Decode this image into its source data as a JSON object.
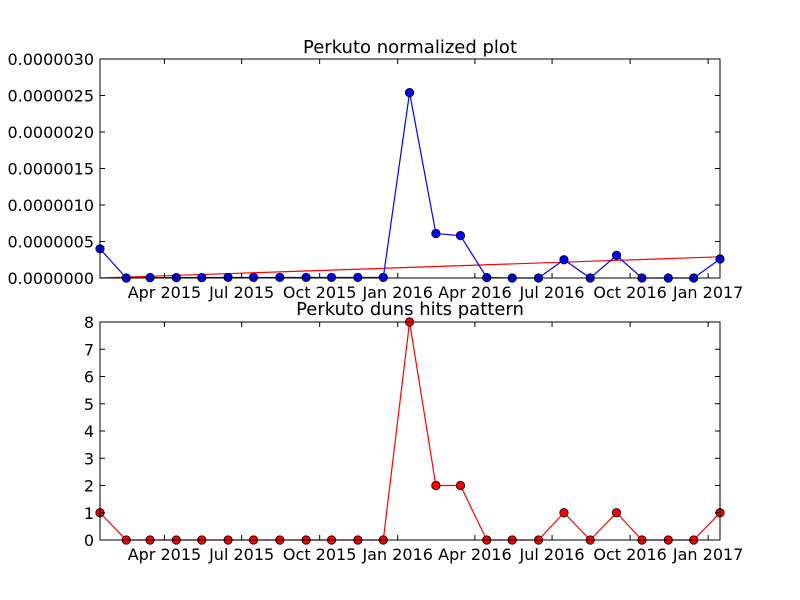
{
  "chart_data": [
    {
      "type": "line",
      "title": "Perkuto normalized plot",
      "xlabel": "",
      "ylabel": "",
      "x": [
        "2015-01-15",
        "2015-02-15",
        "2015-03-15",
        "2015-04-15",
        "2015-05-15",
        "2015-06-15",
        "2015-07-15",
        "2015-08-15",
        "2015-09-15",
        "2015-10-15",
        "2015-11-15",
        "2015-12-15",
        "2016-01-15",
        "2016-02-15",
        "2016-03-15",
        "2016-04-15",
        "2016-05-15",
        "2016-06-15",
        "2016-07-15",
        "2016-08-15",
        "2016-09-15",
        "2016-10-15",
        "2016-11-15",
        "2016-12-15",
        "2017-01-15"
      ],
      "xlim": [
        "2015-01-15",
        "2017-01-15"
      ],
      "ylim": [
        0,
        3e-06
      ],
      "yticks": [
        "0.0000000",
        "0.0000005",
        "0.0000010",
        "0.0000015",
        "0.0000020",
        "0.0000025",
        "0.0000030"
      ],
      "xticks": [
        {
          "date": "2015-04-01",
          "label": "Apr 2015"
        },
        {
          "date": "2015-07-01",
          "label": "Jul 2015"
        },
        {
          "date": "2015-10-01",
          "label": "Oct 2015"
        },
        {
          "date": "2016-01-01",
          "label": "Jan 2016"
        },
        {
          "date": "2016-04-01",
          "label": "Apr 2016"
        },
        {
          "date": "2016-07-01",
          "label": "Jul 2016"
        },
        {
          "date": "2016-10-01",
          "label": "Oct 2016"
        },
        {
          "date": "2017-01-01",
          "label": "Jan 2017"
        }
      ],
      "series": [
        {
          "color": "#0000ff",
          "marker_color": "#0000ff",
          "values": [
            4e-07,
            0,
            5e-09,
            5e-09,
            5e-09,
            8e-09,
            8e-09,
            8e-09,
            8e-09,
            8e-09,
            8e-09,
            8e-09,
            2.54e-06,
            6.1e-07,
            5.8e-07,
            5e-09,
            0,
            0,
            2.5e-07,
            0,
            3.1e-07,
            0,
            0,
            0,
            2.6e-07
          ]
        }
      ],
      "trendline": {
        "color": "#ff0000",
        "start": 0.0,
        "end": 2.9e-07
      }
    },
    {
      "type": "line",
      "title": "Perkuto duns hits pattern",
      "xlabel": "",
      "ylabel": "",
      "x": [
        "2015-01-15",
        "2015-02-15",
        "2015-03-15",
        "2015-04-15",
        "2015-05-15",
        "2015-06-15",
        "2015-07-15",
        "2015-08-15",
        "2015-09-15",
        "2015-10-15",
        "2015-11-15",
        "2015-12-15",
        "2016-01-15",
        "2016-02-15",
        "2016-03-15",
        "2016-04-15",
        "2016-05-15",
        "2016-06-15",
        "2016-07-15",
        "2016-08-15",
        "2016-09-15",
        "2016-10-15",
        "2016-11-15",
        "2016-12-15",
        "2017-01-15"
      ],
      "xlim": [
        "2015-01-15",
        "2017-01-15"
      ],
      "ylim": [
        0,
        8
      ],
      "yticks": [
        "0",
        "1",
        "2",
        "3",
        "4",
        "5",
        "6",
        "7",
        "8"
      ],
      "xticks": [
        {
          "date": "2015-04-01",
          "label": "Apr 2015"
        },
        {
          "date": "2015-07-01",
          "label": "Jul 2015"
        },
        {
          "date": "2015-10-01",
          "label": "Oct 2015"
        },
        {
          "date": "2016-01-01",
          "label": "Jan 2016"
        },
        {
          "date": "2016-04-01",
          "label": "Apr 2016"
        },
        {
          "date": "2016-07-01",
          "label": "Jul 2016"
        },
        {
          "date": "2016-10-01",
          "label": "Oct 2016"
        },
        {
          "date": "2017-01-01",
          "label": "Jan 2017"
        }
      ],
      "series": [
        {
          "color": "#ff0000",
          "marker_color": "#ff0000",
          "values": [
            1,
            0,
            0,
            0,
            0,
            0,
            0,
            0,
            0,
            0,
            0,
            0,
            8,
            2,
            2,
            0,
            0,
            0,
            1,
            0,
            1,
            0,
            0,
            0,
            1
          ]
        }
      ]
    }
  ]
}
